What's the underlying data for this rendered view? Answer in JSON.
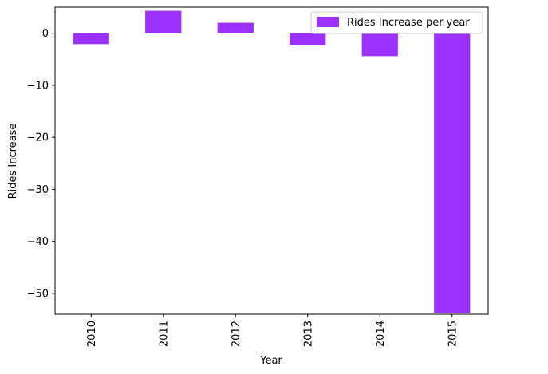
{
  "chart_data": {
    "type": "bar",
    "categories": [
      "2010",
      "2011",
      "2012",
      "2013",
      "2014",
      "2015"
    ],
    "series": [
      {
        "name": "Rides Increase per year",
        "values": [
          -2.1,
          4.3,
          2.0,
          -2.3,
          -4.4,
          -53.7
        ],
        "color": "#9b30ff"
      }
    ],
    "xlabel": "Year",
    "ylabel": "Rides Increase",
    "ylim": [
      -54.0,
      5.0
    ],
    "yticks": [
      0,
      -10,
      -20,
      -30,
      -40,
      -50
    ],
    "ytick_labels": [
      "0",
      "−10",
      "−20",
      "−30",
      "−40",
      "−50"
    ],
    "grid": false,
    "legend": "top-right"
  }
}
